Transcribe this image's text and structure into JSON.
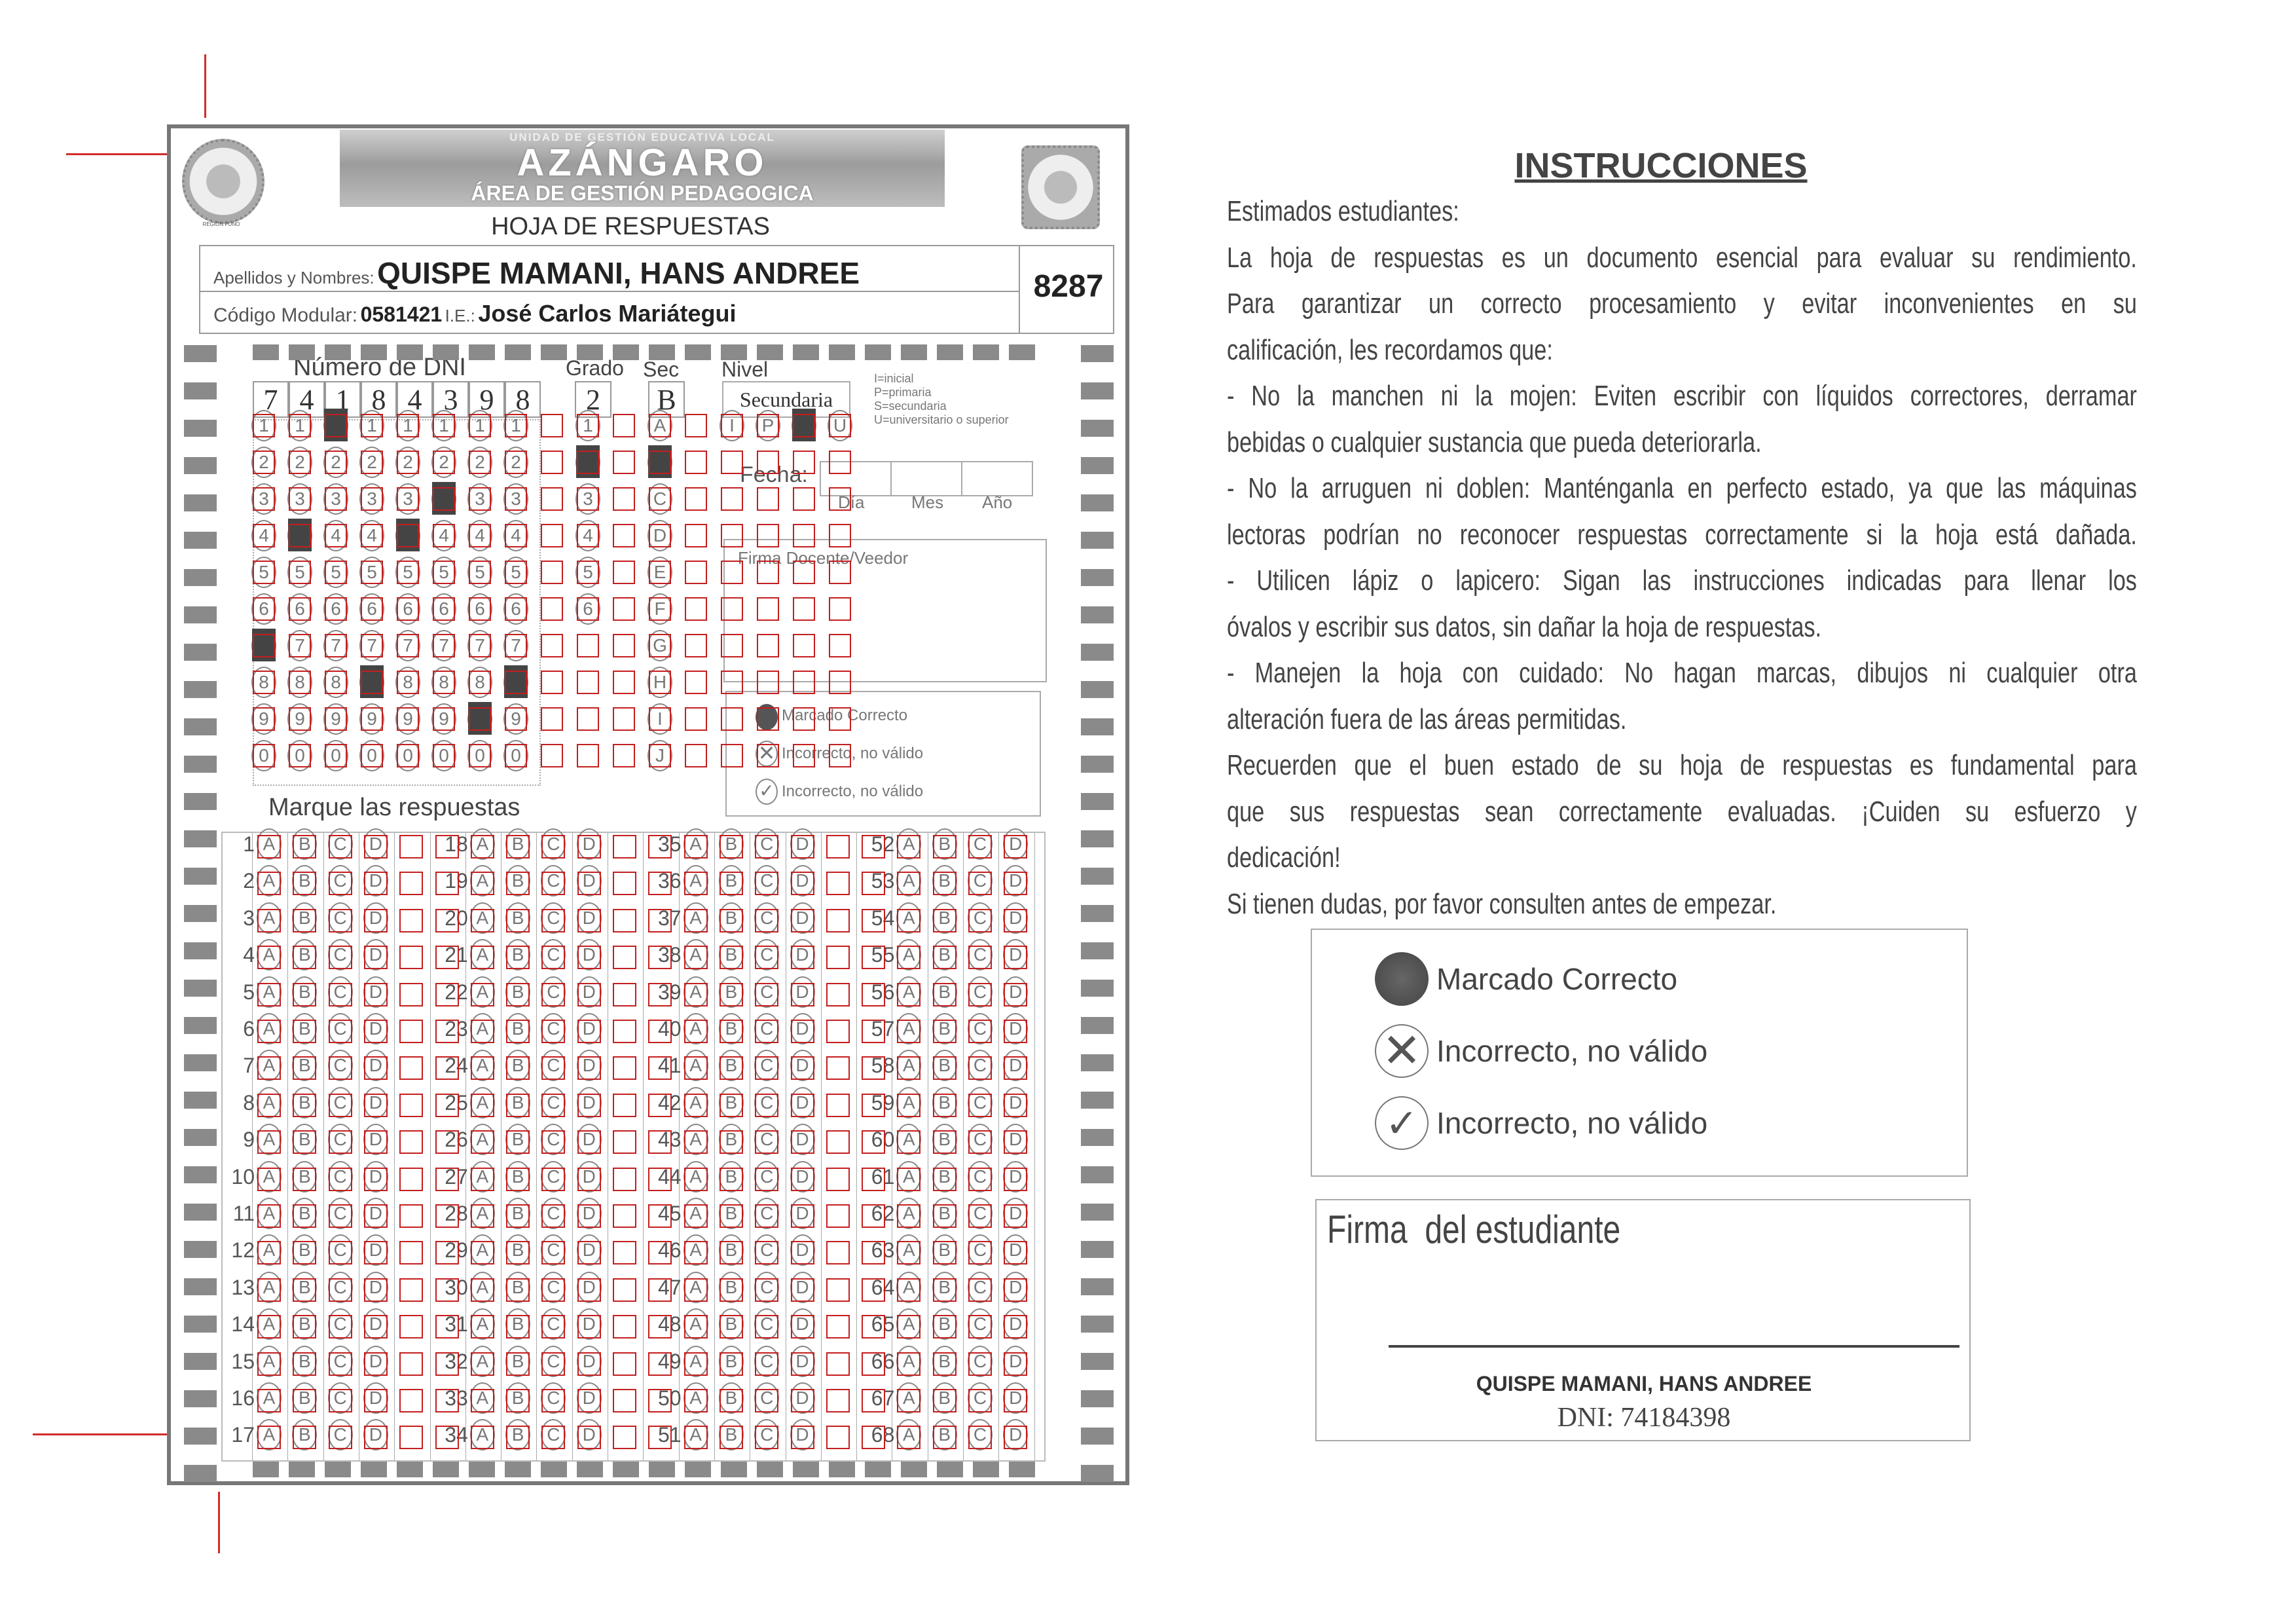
{
  "header": {
    "unit": "UNIDAD DE GESTIÓN EDUCATIVA LOCAL",
    "name": "AZÁNGARO",
    "area": "ÁREA DE GESTIÓN PEDAGOGICA",
    "left_logo_caption": "REGIÓN PUNO",
    "title": "HOJA DE RESPUESTAS"
  },
  "student": {
    "names_label": "Apellidos y Nombres:",
    "names": "QUISPE MAMANI, HANS ANDREE",
    "code_label": "Código Modular:",
    "code": "0581421",
    "ie_label": "I.E.:",
    "ie": "José Carlos Mariátegui",
    "sheet_number": "8287"
  },
  "dni": {
    "label": "Número de DNI",
    "digits": [
      "7",
      "4",
      "1",
      "8",
      "4",
      "3",
      "9",
      "8"
    ],
    "bubble_digits": [
      "1",
      "2",
      "3",
      "4",
      "5",
      "6",
      "7",
      "8",
      "9",
      "0"
    ]
  },
  "grade": {
    "label": "Grado",
    "value": "2",
    "options": [
      "1",
      "2",
      "3",
      "4",
      "5",
      "6"
    ]
  },
  "section": {
    "label": "Sec",
    "value": "B",
    "options": [
      "A",
      "B",
      "C",
      "D",
      "E",
      "F",
      "G",
      "H",
      "I",
      "J"
    ]
  },
  "level": {
    "label": "Nivel",
    "value": "Secundaria",
    "selected": "S",
    "options": [
      "I",
      "P",
      "S",
      "U"
    ],
    "legend": [
      "I=inicial",
      "P=primaria",
      "S=secundaria",
      "U=universitario o superior"
    ]
  },
  "date": {
    "label": "Fecha:",
    "day": "Día",
    "month": "Mes",
    "year": "Año"
  },
  "teacher_signature": "Firma Docente/Veedor",
  "mark_legend_small": [
    "Marcado Correcto",
    "Incorrecto, no válido",
    "Incorrecto, no válido"
  ],
  "answers": {
    "label": "Marque las respuestas",
    "first": 1,
    "last": 68,
    "per_column": 17,
    "options": [
      "A",
      "B",
      "C",
      "D"
    ]
  },
  "instructions": {
    "title": "INSTRUCCIONES",
    "lines": [
      {
        "text": "Estimados estudiantes:",
        "justify": false
      },
      {
        "text": "La hoja de respuestas es un documento esencial para evaluar su rendimiento.",
        "justify": true
      },
      {
        "text": "Para garantizar un correcto procesamiento y evitar inconvenientes en su",
        "justify": true
      },
      {
        "text": "calificación, les recordamos que:",
        "justify": false
      },
      {
        "text": "- No la manchen ni la mojen: Eviten escribir con líquidos correctores, derramar",
        "justify": true
      },
      {
        "text": "bebidas o cualquier sustancia que pueda deteriorarla.",
        "justify": false
      },
      {
        "text": "- No la arruguen ni doblen: Manténganla en perfecto estado, ya que las máquinas",
        "justify": true
      },
      {
        "text": "lectoras podrían no reconocer respuestas correctamente si la hoja está dañada.",
        "justify": true
      },
      {
        "text": "- Utilicen lápiz o lapicero: Sigan las instrucciones indicadas para llenar los",
        "justify": true
      },
      {
        "text": "óvalos y escribir sus datos, sin dañar la hoja de respuestas.",
        "justify": false
      },
      {
        "text": "- Manejen la hoja con cuidado: No hagan marcas, dibujos ni cualquier otra",
        "justify": true
      },
      {
        "text": "alteración fuera de las áreas permitidas.",
        "justify": false
      },
      {
        "text": "Recuerden que el buen estado de su hoja de respuestas es fundamental para",
        "justify": true
      },
      {
        "text": "que sus respuestas sean correctamente evaluadas. ¡Cuiden su esfuerzo y",
        "justify": true
      },
      {
        "text": "dedicación!",
        "justify": false
      },
      {
        "text": "Si tienen dudas, por favor consulten antes de empezar.",
        "justify": false
      }
    ]
  },
  "mark_legend": {
    "correct": "Marcado Correcto",
    "cross": "Incorrecto, no válido",
    "check": "Incorrecto, no válido"
  },
  "student_signature": {
    "label": "Firma  del estudiante",
    "name": "QUISPE MAMANI, HANS ANDREE",
    "dni": "DNI: 74184398"
  },
  "colors": {
    "overlay_box": "#c41e1e",
    "filled_mark": "#444444",
    "timing_mark": "#8a8a8a"
  }
}
